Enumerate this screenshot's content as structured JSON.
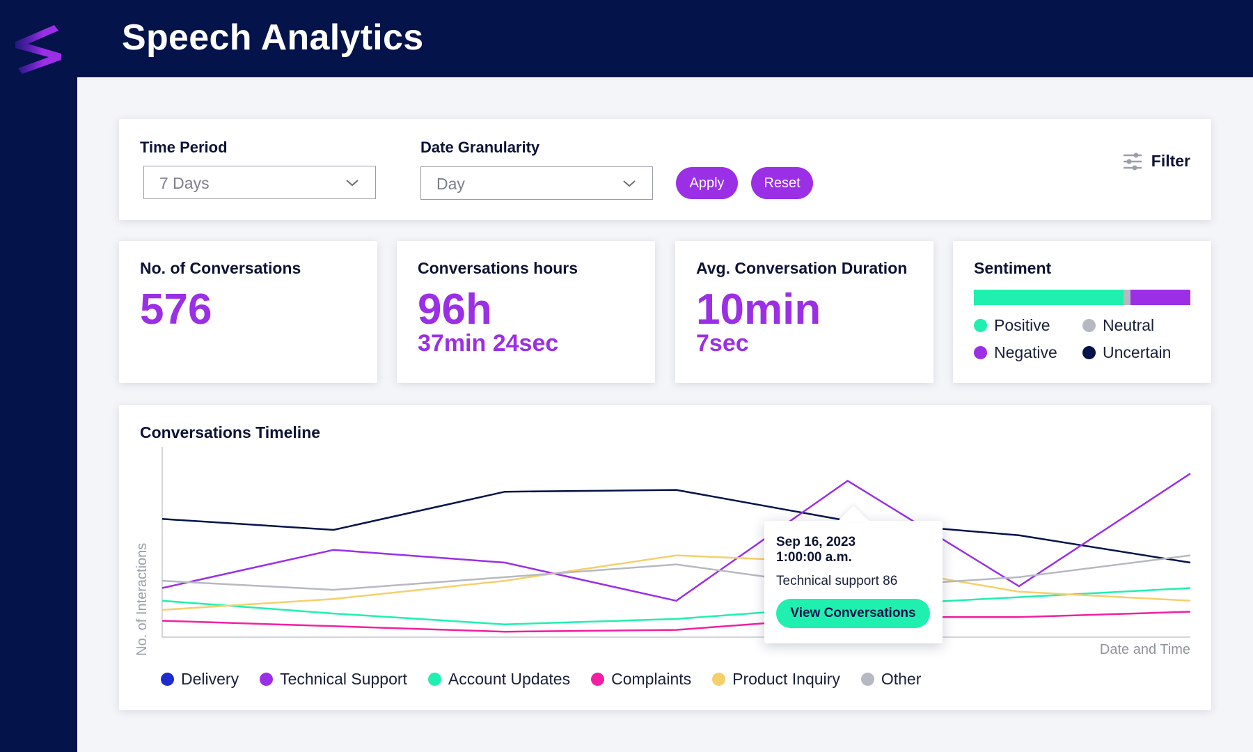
{
  "app": {
    "title": "Speech Analytics",
    "logo_icon": "s-logo-icon"
  },
  "filters": {
    "time_period": {
      "label": "Time Period",
      "value": "7 Days"
    },
    "date_granularity": {
      "label": "Date Granularity",
      "value": "Day"
    },
    "apply_label": "Apply",
    "reset_label": "Reset",
    "filter_label": "Filter",
    "filter_icon": "sliders-icon"
  },
  "kpis": {
    "conversations": {
      "title": "No. of Conversations",
      "value": "576"
    },
    "hours": {
      "title": "Conversations hours",
      "value": "96h",
      "sub": "37min 24sec"
    },
    "avg_duration": {
      "title": "Avg. Conversation Duration",
      "value": "10min",
      "sub": "7sec"
    }
  },
  "sentiment": {
    "title": "Sentiment",
    "shares": [
      {
        "label": "Positive",
        "fraction": 0.69,
        "color": "#1ff0b0"
      },
      {
        "label": "Neutral",
        "fraction": 0.035,
        "color": "#b6b9c2"
      },
      {
        "label": "Negative",
        "fraction": 0.275,
        "color": "#9b2fe6"
      }
    ],
    "legend": [
      {
        "label": "Positive",
        "color": "#1ff0b0"
      },
      {
        "label": "Neutral",
        "color": "#b6b9c2"
      },
      {
        "label": "Negative",
        "color": "#9b2fe6"
      },
      {
        "label": "Uncertain",
        "color": "#04134a"
      }
    ]
  },
  "timeline": {
    "title": "Conversations Timeline",
    "ylabel": "No. of Interactions",
    "xlabel": "Date and Time",
    "tooltip": {
      "date": "Sep 16, 2023",
      "time": "1:00:00 a.m.",
      "value_text": "Technical support 86",
      "button_label": "View Conversations"
    }
  },
  "chart_data": {
    "type": "line",
    "title": "Conversations Timeline",
    "xlabel": "Date and Time",
    "ylabel": "No. of Interactions",
    "x": [
      0,
      1,
      2,
      3,
      4,
      5,
      6
    ],
    "ylim": [
      0,
      100
    ],
    "grid": false,
    "legend_position": "bottom",
    "series": [
      {
        "name": "Delivery",
        "color": "#04134a",
        "legend_color": "#1f2ad0",
        "values": [
          65,
          59,
          80,
          81,
          64,
          56,
          41
        ]
      },
      {
        "name": "Technical Support",
        "color": "#9b2fe6",
        "legend_color": "#9b2fe6",
        "values": [
          27,
          48,
          41,
          20,
          86,
          28,
          90
        ]
      },
      {
        "name": "Account Updates",
        "color": "#1ff0b0",
        "legend_color": "#1ff0b0",
        "values": [
          20,
          13,
          7,
          10,
          17,
          22,
          27
        ]
      },
      {
        "name": "Complaints",
        "color": "#f31fa3",
        "legend_color": "#f31fa3",
        "values": [
          9,
          6,
          3,
          4,
          11,
          11,
          14
        ]
      },
      {
        "name": "Product Inquiry",
        "color": "#f5cf6c",
        "legend_color": "#f5cf6c",
        "values": [
          15,
          21,
          31,
          45,
          41,
          25,
          20
        ]
      },
      {
        "name": "Other",
        "color": "#b6b9c2",
        "legend_color": "#b6b9c2",
        "values": [
          31,
          26,
          33,
          40,
          27,
          33,
          45
        ]
      }
    ]
  }
}
